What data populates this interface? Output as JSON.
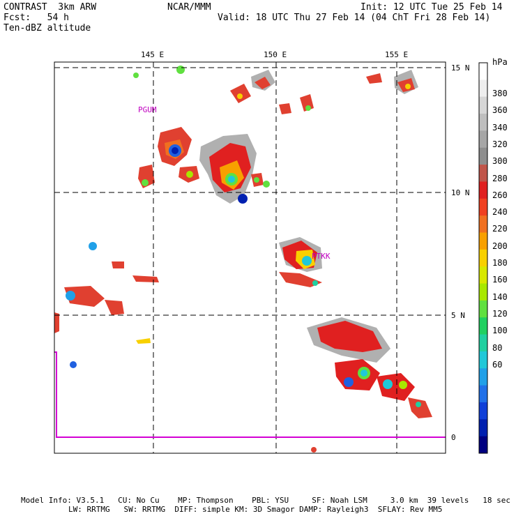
{
  "header": {
    "left": [
      "CONTRAST  3km ARW",
      "Fcst:   54 h",
      "Ten-dBZ altitude"
    ],
    "center": "NCAR/MMM",
    "init": "Init: 12 UTC Tue 25 Feb 14",
    "valid": "Valid: 18 UTC Thu 27 Feb 14 (04 ChT Fri 28 Feb 14)"
  },
  "map": {
    "lon_labels": [
      "145 E",
      "150 E",
      "155 E"
    ],
    "lat_labels": [
      "15 N",
      "10 N",
      "5 N",
      "0"
    ],
    "lon_range": [
      141,
      157
    ],
    "lat_range": [
      -0.6,
      15.1
    ],
    "stations": [
      {
        "name": "PGUM",
        "lon": 144.8,
        "lat": 13.5
      },
      {
        "name": "PTKK",
        "lon": 151.8,
        "lat": 7.5
      }
    ],
    "equator_color": "#d400d4"
  },
  "colorbar": {
    "unit": "hPa",
    "labels": [
      "380",
      "360",
      "340",
      "320",
      "300",
      "280",
      "260",
      "240",
      "220",
      "200",
      "180",
      "160",
      "140",
      "120",
      "100",
      "80",
      "60"
    ],
    "colors": [
      "#ffffff",
      "#eeeeee",
      "#d6d6d6",
      "#bebebe",
      "#a6a6a6",
      "#8e8e8e",
      "#c0554a",
      "#e02020",
      "#f04020",
      "#f07020",
      "#f8a000",
      "#f8d000",
      "#d8e800",
      "#a8e800",
      "#60e040",
      "#20d060",
      "#20d0a0",
      "#20c8d8",
      "#20a0e8",
      "#2070e8",
      "#1040d8",
      "#0020b0",
      "#000080"
    ]
  },
  "footer": {
    "line1": "Model Info: V3.5.1   CU: No Cu    MP: Thompson    PBL: YSU     SF: Noah LSM     3.0 km  39 levels   18 sec",
    "line2": "LW: RRTMG   SW: RRTMG  DIFF: simple KM: 3D Smagor DAMP: Rayleigh3  SFLAY: Rev MM5"
  }
}
